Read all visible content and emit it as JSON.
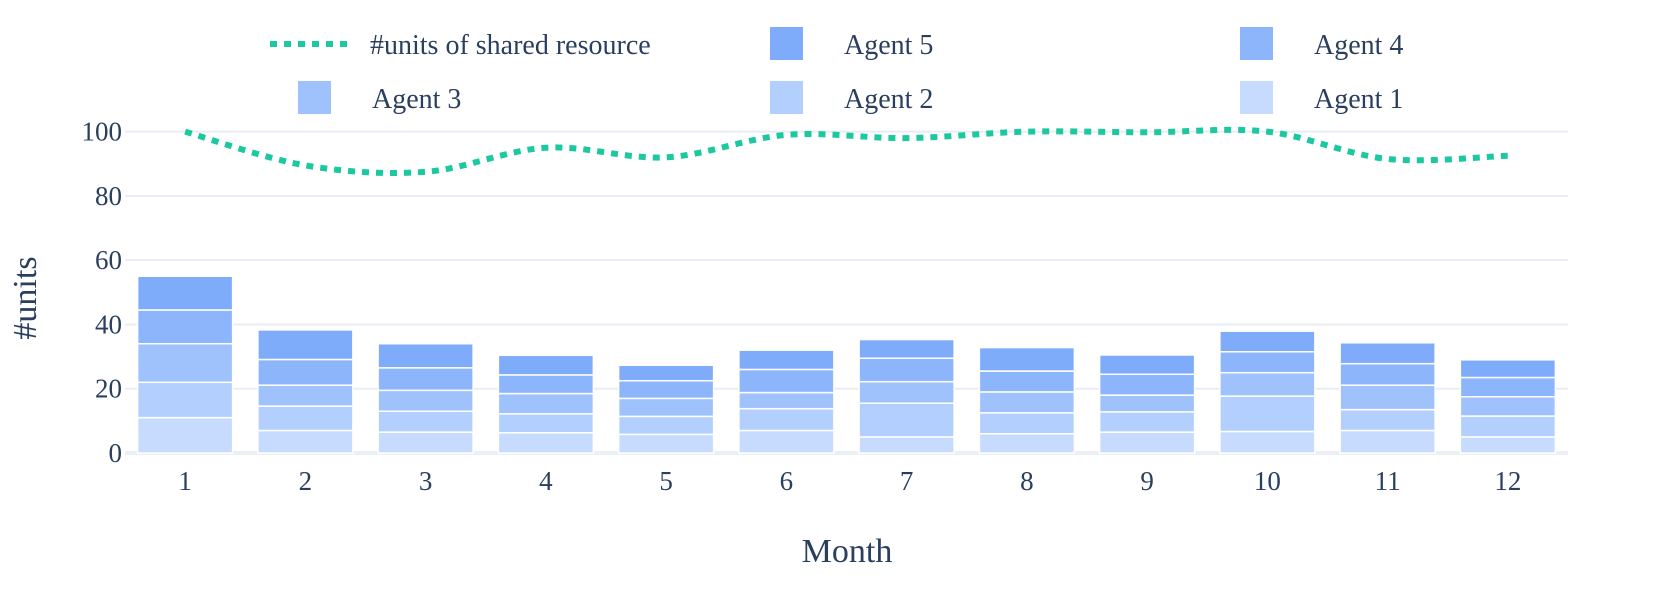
{
  "chart_data": {
    "type": "bar",
    "stacked": true,
    "xlabel": "Month",
    "ylabel": "#units",
    "categories": [
      "1",
      "2",
      "3",
      "4",
      "5",
      "6",
      "7",
      "8",
      "9",
      "10",
      "11",
      "12"
    ],
    "yticks": [
      0,
      20,
      40,
      60,
      80,
      100
    ],
    "ylim": [
      0,
      103
    ],
    "grid": true,
    "legend": {
      "position": "top",
      "entries": [
        "#units of shared resource",
        "Agent 5",
        "Agent 4",
        "Agent 3",
        "Agent 2",
        "Agent 1"
      ]
    },
    "series": [
      {
        "name": "Agent 1",
        "kind": "bar",
        "color": "#c6dbfd",
        "values": [
          11,
          7,
          6.5,
          6.3,
          5.8,
          7,
          5,
          6,
          6.5,
          6.7,
          7,
          5
        ]
      },
      {
        "name": "Agent 2",
        "kind": "bar",
        "color": "#b3cffd",
        "values": [
          11,
          7.6,
          6.5,
          5.9,
          5.6,
          6.8,
          10.5,
          6.5,
          6.3,
          11,
          6.5,
          6.5
        ]
      },
      {
        "name": "Agent 3",
        "kind": "bar",
        "color": "#9fc1fc",
        "values": [
          12,
          6.5,
          6.5,
          6.3,
          5.6,
          5,
          6.7,
          6.5,
          5.2,
          7.3,
          7.6,
          6
        ]
      },
      {
        "name": "Agent 4",
        "kind": "bar",
        "color": "#8db5fb",
        "values": [
          10.5,
          8,
          7,
          5.8,
          5.5,
          7.2,
          7.3,
          6.5,
          6.5,
          6.5,
          6.7,
          6
        ]
      },
      {
        "name": "Agent 5",
        "kind": "bar",
        "color": "#7eabfa",
        "values": [
          10.5,
          9.2,
          7.5,
          6.1,
          4.8,
          6,
          5.8,
          7.3,
          6,
          6.4,
          6.5,
          5.5
        ]
      },
      {
        "name": "#units of shared resource",
        "kind": "line",
        "dash": "dot",
        "color": "#1cc8a0",
        "values": [
          100,
          89.5,
          87.5,
          95,
          92,
          99,
          98,
          100,
          99.8,
          100,
          91.5,
          92.5
        ]
      }
    ]
  }
}
